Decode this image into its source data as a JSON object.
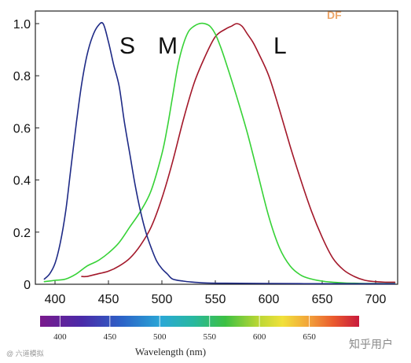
{
  "chart_data": {
    "type": "line",
    "title": "",
    "xlabel": "",
    "ylabel": "",
    "xlim": [
      387,
      718
    ],
    "ylim": [
      0,
      1.05
    ],
    "x_ticks": [
      400,
      450,
      500,
      550,
      600,
      650,
      700
    ],
    "y_ticks": [
      0,
      0.2,
      0.4,
      0.6,
      0.8,
      1.0
    ],
    "x_tick_labels": [
      "400",
      "450",
      "500",
      "550",
      "600",
      "650",
      "700"
    ],
    "y_tick_labels": [
      "0",
      "0.2",
      "0.4",
      "0.6",
      "0.8",
      "1.0"
    ],
    "grid": false,
    "series": [
      {
        "name": "S",
        "color": "#1e2a86",
        "x": [
          390,
          395,
          400,
          405,
          410,
          415,
          420,
          425,
          430,
          435,
          440,
          445,
          450,
          455,
          460,
          465,
          470,
          475,
          480,
          485,
          490,
          495,
          500,
          505,
          510,
          520,
          530,
          540,
          560,
          600,
          650,
          700,
          718
        ],
        "y": [
          0.02,
          0.04,
          0.08,
          0.16,
          0.28,
          0.45,
          0.62,
          0.77,
          0.88,
          0.95,
          0.99,
          1.0,
          0.93,
          0.84,
          0.76,
          0.62,
          0.5,
          0.38,
          0.28,
          0.2,
          0.14,
          0.09,
          0.06,
          0.04,
          0.02,
          0.012,
          0.008,
          0.005,
          0.004,
          0.003,
          0.002,
          0.002,
          0.002
        ]
      },
      {
        "name": "M",
        "color": "#37d237",
        "x": [
          390,
          400,
          410,
          420,
          430,
          440,
          450,
          460,
          470,
          480,
          490,
          500,
          505,
          510,
          515,
          520,
          525,
          530,
          535,
          540,
          545,
          550,
          555,
          560,
          570,
          580,
          590,
          600,
          610,
          620,
          630,
          640,
          650,
          660,
          670,
          680,
          690,
          700,
          718
        ],
        "y": [
          0.01,
          0.015,
          0.02,
          0.04,
          0.07,
          0.09,
          0.12,
          0.16,
          0.22,
          0.28,
          0.36,
          0.5,
          0.6,
          0.72,
          0.84,
          0.92,
          0.97,
          0.99,
          1.0,
          1.0,
          0.99,
          0.96,
          0.91,
          0.85,
          0.72,
          0.58,
          0.42,
          0.26,
          0.14,
          0.07,
          0.035,
          0.02,
          0.012,
          0.008,
          0.005,
          0.004,
          0.003,
          0.003,
          0.003
        ]
      },
      {
        "name": "L",
        "color": "#a3182a",
        "x": [
          425,
          430,
          440,
          450,
          460,
          470,
          480,
          490,
          500,
          510,
          520,
          530,
          540,
          550,
          560,
          565,
          570,
          575,
          580,
          585,
          590,
          600,
          610,
          620,
          630,
          640,
          650,
          660,
          670,
          680,
          690,
          700,
          710,
          718
        ],
        "y": [
          0.03,
          0.03,
          0.04,
          0.05,
          0.07,
          0.1,
          0.15,
          0.22,
          0.33,
          0.47,
          0.63,
          0.77,
          0.87,
          0.95,
          0.98,
          0.99,
          1.0,
          0.99,
          0.96,
          0.93,
          0.89,
          0.8,
          0.67,
          0.53,
          0.4,
          0.28,
          0.18,
          0.1,
          0.055,
          0.03,
          0.015,
          0.01,
          0.008,
          0.008
        ]
      }
    ],
    "annotations": [
      "S",
      "M",
      "L"
    ],
    "colorbar": {
      "title": "Wavelength (nm)",
      "tick_labels": [
        "400",
        "450",
        "500",
        "550",
        "600",
        "650"
      ],
      "range": [
        380,
        700
      ]
    }
  },
  "watermarks": {
    "top_right": "DF",
    "bottom_right": "知乎用户",
    "bottom_left": "@ 六道模拟"
  }
}
